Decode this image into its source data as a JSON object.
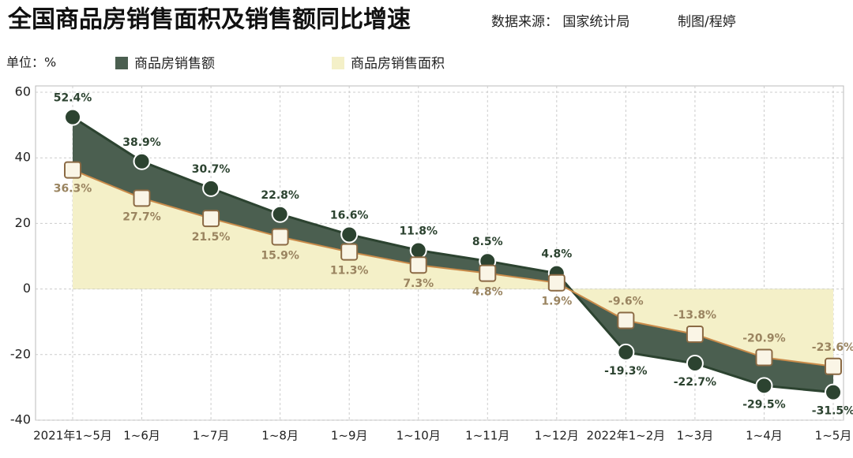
{
  "title": "全国商品房销售面积及销售额同比增速",
  "source": "数据来源： 国家统计局",
  "author": "制图/程婷",
  "chart_data": {
    "type": "area",
    "unit_label": "单位：%",
    "categories": [
      "2021年1~5月",
      "1~6月",
      "1~7月",
      "1~8月",
      "1~9月",
      "1~10月",
      "1~11月",
      "1~12月",
      "2022年1~2月",
      "1~3月",
      "1~4月",
      "1~5月"
    ],
    "series": [
      {
        "name": "商品房销售额",
        "color": "#4b5f50",
        "line_color": "#2c4330",
        "values": [
          52.4,
          38.9,
          30.7,
          22.8,
          16.6,
          11.8,
          8.5,
          4.8,
          -19.3,
          -22.7,
          -29.5,
          -31.5
        ],
        "value_labels": [
          "52.4%",
          "38.9%",
          "30.7%",
          "22.8%",
          "16.6%",
          "11.8%",
          "8.5%",
          "4.8%",
          "-19.3%",
          "-22.7%",
          "-29.5%",
          "-31.5%"
        ]
      },
      {
        "name": "商品房销售面积",
        "color": "#f4f0c8",
        "line_color": "#c98b4a",
        "values": [
          36.3,
          27.7,
          21.5,
          15.9,
          11.3,
          7.3,
          4.8,
          1.9,
          -9.6,
          -13.8,
          -20.9,
          -23.6
        ],
        "value_labels": [
          "36.3%",
          "27.7%",
          "21.5%",
          "15.9%",
          "11.3%",
          "7.3%",
          "4.8%",
          "1.9%",
          "-9.6%",
          "-13.8%",
          "-20.9%",
          "-23.6%"
        ]
      }
    ],
    "ylim": [
      -40,
      60
    ],
    "yticks": [
      -40,
      -20,
      0,
      20,
      40,
      60
    ],
    "grid": true
  }
}
